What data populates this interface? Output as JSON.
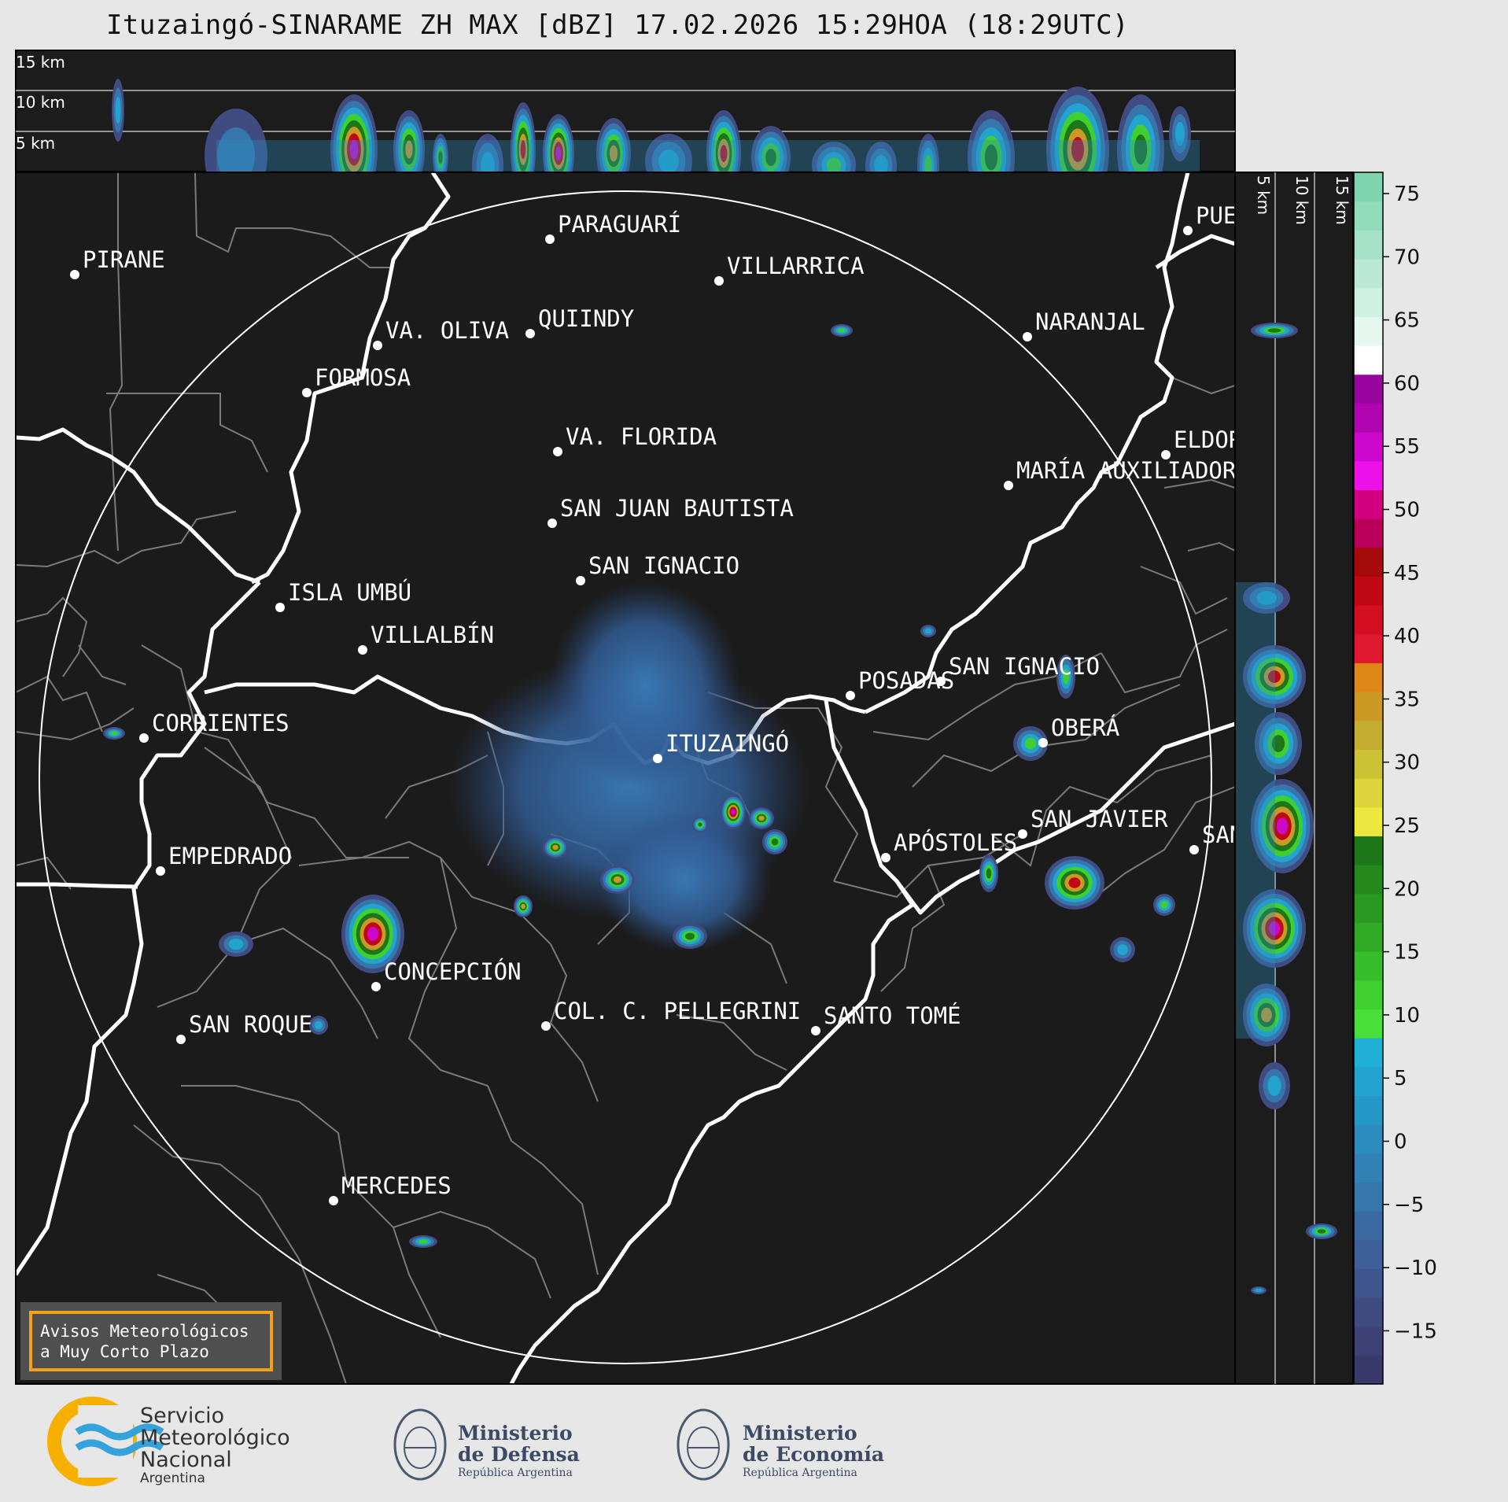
{
  "title": "Ituzaingó-SINARAME ZH MAX [dBZ] 17.02.2026 15:29HOA (18:29UTC)",
  "top_section_labels": [
    "15 km",
    "10 km",
    "5 km"
  ],
  "side_section_labels": [
    "5 km",
    "10 km",
    "15 km"
  ],
  "colorbar": {
    "ticks": [
      "75",
      "70",
      "65",
      "60",
      "55",
      "50",
      "45",
      "40",
      "35",
      "30",
      "25",
      "20",
      "15",
      "10",
      "5",
      "0",
      "−5",
      "−10",
      "−15"
    ],
    "colors": [
      "#3a3a6a",
      "#3d4276",
      "#404b82",
      "#41558d",
      "#3f5f98",
      "#3b6aa2",
      "#3676ab",
      "#3181b5",
      "#2c8cbe",
      "#2698c7",
      "#23a4d0",
      "#20b0d6",
      "#48e038",
      "#3fcf30",
      "#37bd2b",
      "#30aa26",
      "#2a9922",
      "#24881d",
      "#1d7618",
      "#ede83e",
      "#ddd53a",
      "#ccc236",
      "#c2ad30",
      "#cc9a24",
      "#dd8719",
      "#e01830",
      "#d20e20",
      "#c00815",
      "#a50a0a",
      "#b8005a",
      "#d20080",
      "#ee10e8",
      "#cc08cc",
      "#b004b0",
      "#98069e",
      "#ffffff",
      "#e6f7ef",
      "#d0f0e2",
      "#bbe9d5",
      "#a6e2c8",
      "#92dbbb",
      "#80d5b0"
    ]
  },
  "cities": [
    {
      "name": "PIRANE"
    },
    {
      "name": "PARAGUARÍ"
    },
    {
      "name": "VILLARRICA"
    },
    {
      "name": "VA. OLIVA"
    },
    {
      "name": "QUIINDY"
    },
    {
      "name": "FORMOSA"
    },
    {
      "name": "NARANJAL"
    },
    {
      "name": "PUERTO"
    },
    {
      "name": "VA. FLORIDA"
    },
    {
      "name": "ELDORADO"
    },
    {
      "name": "MARÍA AUXILIADORA"
    },
    {
      "name": "SAN JUAN BAUTISTA"
    },
    {
      "name": "SAN IGNACIO"
    },
    {
      "name": "ISLA UMBÚ"
    },
    {
      "name": "VILLALBÍN"
    },
    {
      "name": "SAN IGNACIO"
    },
    {
      "name": "POSADAS"
    },
    {
      "name": "CORRIENTES"
    },
    {
      "name": "ITUZAINGÓ"
    },
    {
      "name": "OBERÁ"
    },
    {
      "name": "APÓSTOLES"
    },
    {
      "name": "SAN JAVIER"
    },
    {
      "name": "SAN VICENTE"
    },
    {
      "name": "EMPEDRADO"
    },
    {
      "name": "CONCEPCIÓN"
    },
    {
      "name": "SAN ROQUE"
    },
    {
      "name": "COL. C. PELLEGRINI"
    },
    {
      "name": "SANTO TOMÉ"
    },
    {
      "name": "MERCEDES"
    }
  ],
  "warning_box": {
    "line1": "Avisos Meteorológicos",
    "line2": "a Muy Corto Plazo"
  },
  "logos": {
    "smn": {
      "line1": "Servicio",
      "line2": "Meteorológico",
      "line3": "Nacional",
      "line4": "Argentina"
    },
    "defensa": {
      "line1": "Ministerio",
      "line2": "de Defensa",
      "line3": "República Argentina"
    },
    "economia": {
      "line1": "Ministerio",
      "line2": "de Economía",
      "line3": "República Argentina"
    }
  }
}
